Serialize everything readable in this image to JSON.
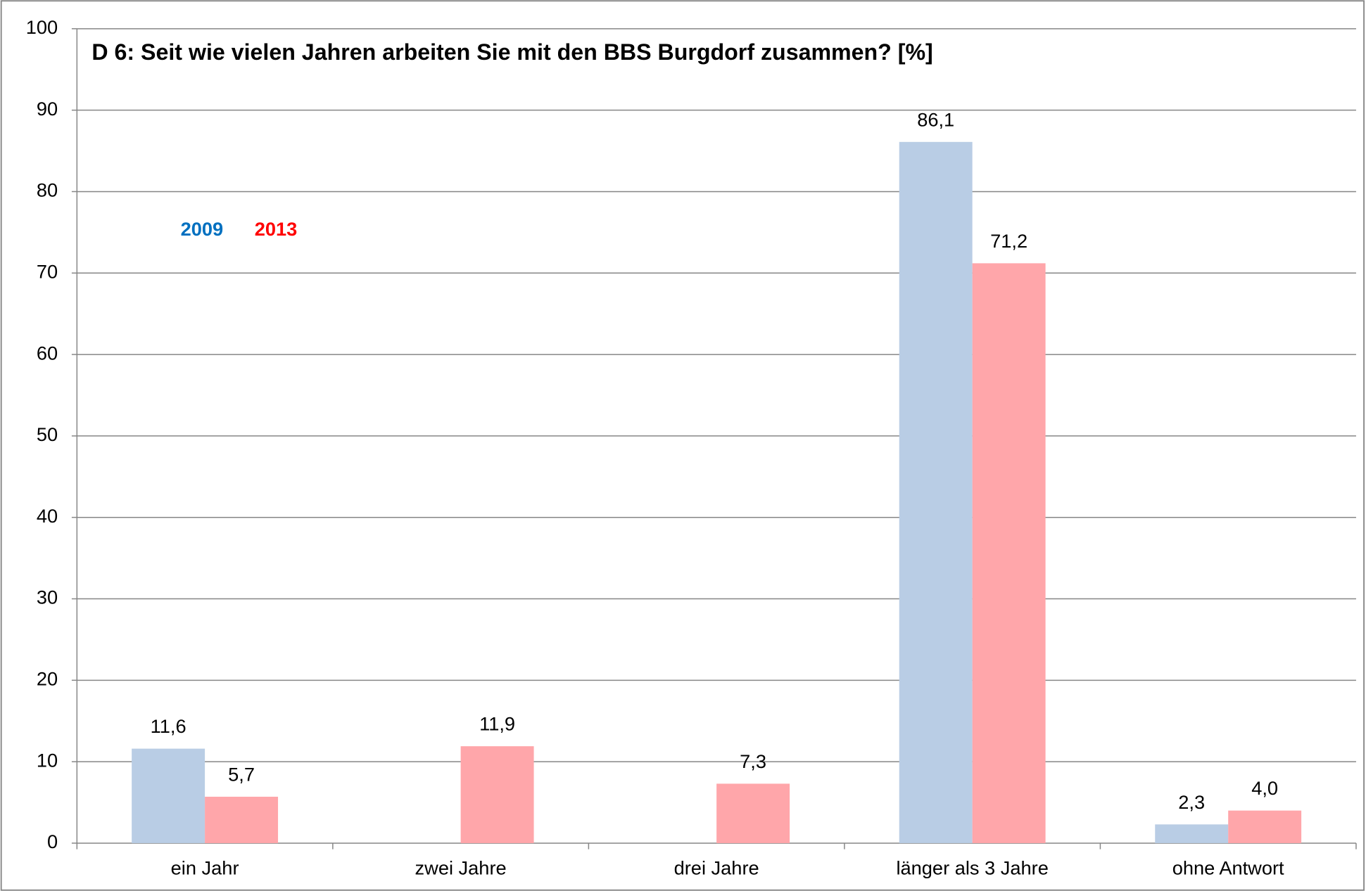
{
  "chart_data": {
    "type": "bar",
    "title": "D 6: Seit wie vielen Jahren arbeiten Sie mit den BBS Burgdorf zusammen?  [%]",
    "categories": [
      "ein Jahr",
      "zwei Jahre",
      "drei Jahre",
      "länger als 3 Jahre",
      "ohne Antwort"
    ],
    "series": [
      {
        "name": "2009",
        "color": "#b9cde5",
        "label_color": "#0070c0",
        "values": [
          11.6,
          null,
          null,
          86.1,
          2.3
        ],
        "value_labels": [
          "11,6",
          null,
          null,
          "86,1",
          "2,3"
        ]
      },
      {
        "name": "2013",
        "color": "#ffa6aa",
        "label_color": "#ff0000",
        "values": [
          5.7,
          11.9,
          7.3,
          71.2,
          4.0
        ],
        "value_labels": [
          "5,7",
          "11,9",
          "7,3",
          "71,2",
          "4,0"
        ]
      }
    ],
    "ylim": [
      0,
      100
    ],
    "yticks": [
      0,
      10,
      20,
      30,
      40,
      50,
      60,
      70,
      80,
      90,
      100
    ],
    "grid": true
  }
}
